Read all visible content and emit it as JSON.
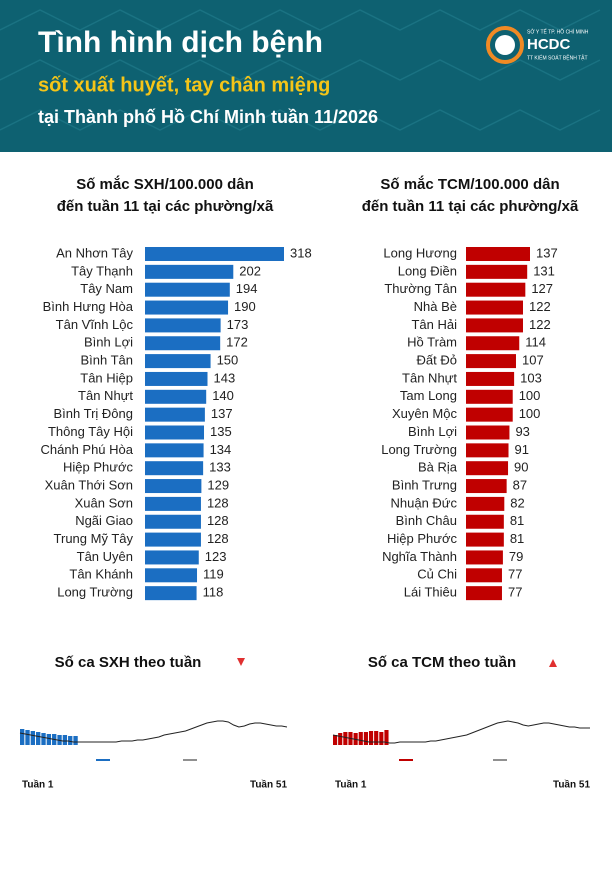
{
  "header": {
    "title": "Tình hình dịch bệnh",
    "subtitle": "sốt xuất huyết, tay chân miệng",
    "location": "tại Thành phố Hồ Chí Minh tuần 11/2026",
    "logo": {
      "org": "SỞ Y TẾ TP. HỒ CHÍ MINH",
      "name": "HCDC",
      "unit": "TT KIỂM SOÁT BỆNH TẬT"
    }
  },
  "chart_data": [
    {
      "type": "hbar",
      "title": [
        "Số mắc SXH/100.000 dân",
        "đến tuần 11 tại các phường/xã"
      ],
      "color": "#1b6ec2",
      "categories": [
        "An Nhơn Tây",
        "Tây Thạnh",
        "Tây Nam",
        "Bình Hưng Hòa",
        "Tân Vĩnh Lộc",
        "Bình Lợi",
        "Bình Tân",
        "Tân Hiệp",
        "Tân Nhựt",
        "Bình Trị Đông",
        "Thông Tây Hội",
        "Chánh Phú Hòa",
        "Hiệp Phước",
        "Xuân Thới Sơn",
        "Xuân Sơn",
        "Ngãi Giao",
        "Trung Mỹ Tây",
        "Tân Uyên",
        "Tân Khánh",
        "Long Trường"
      ],
      "values": [
        318,
        202,
        194,
        190,
        173,
        172,
        150,
        143,
        140,
        137,
        135,
        134,
        133,
        129,
        128,
        128,
        128,
        123,
        119,
        118
      ]
    },
    {
      "type": "hbar",
      "title": [
        "Số mắc TCM/100.000 dân",
        "đến tuần 11 tại các phường/xã"
      ],
      "color": "#c00000",
      "categories": [
        "Long Hương",
        "Long Điền",
        "Thường Tân",
        "Nhà Bè",
        "Tân Hải",
        "Hồ Tràm",
        "Đất Đỏ",
        "Tân Nhựt",
        "Tam Long",
        "Xuyên Mộc",
        "Bình Lợi",
        "Long Trường",
        "Bà Rịa",
        "Bình Trưng",
        "Nhuận Đức",
        "Bình Châu",
        "Hiệp Phước",
        "Nghĩa Thành",
        "Củ Chi",
        "Lái Thiêu"
      ],
      "values": [
        137,
        131,
        127,
        122,
        122,
        114,
        107,
        103,
        100,
        100,
        93,
        91,
        90,
        87,
        82,
        81,
        81,
        79,
        77,
        77
      ]
    },
    {
      "type": "weekly",
      "title": "Số ca SXH theo tuần",
      "color": "#1b6ec2",
      "line_color": "#222222",
      "x_labels": [
        "Tuần 1",
        "Tuần 51"
      ],
      "values": [
        16,
        15,
        14,
        13,
        12,
        11,
        11,
        10,
        10,
        9,
        9
      ],
      "line": [
        12,
        11,
        10,
        9,
        8,
        7,
        6,
        5,
        4,
        4,
        3,
        3,
        3,
        3,
        3,
        3,
        3,
        3,
        3,
        4,
        4,
        4,
        5,
        5,
        6,
        7,
        8,
        10,
        11,
        12,
        13,
        14,
        16,
        18,
        20,
        22,
        23,
        24,
        24,
        23,
        20,
        18,
        19,
        21,
        22,
        22,
        21,
        20,
        19,
        19,
        18
      ]
    },
    {
      "type": "weekly",
      "title": "Số ca TCM theo tuần",
      "color": "#c00000",
      "line_color": "#222222",
      "x_labels": [
        "Tuần 1",
        "Tuần 51"
      ],
      "values": [
        10,
        12,
        13,
        13,
        12,
        13,
        13,
        14,
        14,
        13,
        15
      ],
      "line": [
        10,
        9,
        8,
        7,
        6,
        5,
        4,
        3,
        3,
        3,
        3,
        2,
        2,
        3,
        3,
        3,
        3,
        3,
        3,
        4,
        4,
        5,
        6,
        7,
        8,
        9,
        10,
        12,
        14,
        16,
        18,
        20,
        22,
        23,
        24,
        23,
        22,
        20,
        19,
        20,
        21,
        22,
        22,
        21,
        20,
        19,
        18,
        18,
        17,
        17,
        17
      ]
    }
  ]
}
